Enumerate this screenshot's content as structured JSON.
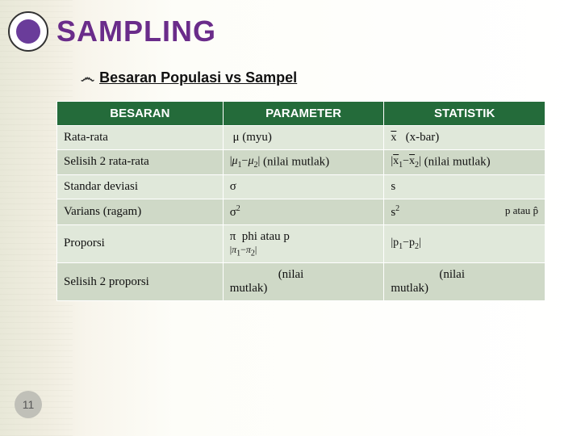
{
  "title": "SAMPLING",
  "subtitle": "Besaran Populasi vs Sampel",
  "pageNumber": "11",
  "table": {
    "headers": [
      "BESARAN",
      "PARAMETER",
      "STATISTIK"
    ],
    "rows": [
      {
        "besaran": "Rata-rata",
        "parameter": "μ (myu)",
        "statistik_prefix": "x̄",
        "statistik_suffix": "   (x-bar)"
      },
      {
        "besaran": "Selisih 2 rata-rata",
        "param_math": "|μ₁−μ₂|",
        "param_label": "        (nilai mutlak)",
        "stat_math": "|x̄₁−x̄₂|",
        "stat_label": "        (nilai mutlak)"
      },
      {
        "besaran": "Standar deviasi",
        "parameter": "σ",
        "statistik": "s"
      },
      {
        "besaran": "Varians (ragam)",
        "parameter": "σ²",
        "statistik_html": "s²",
        "statistik_extra": "atau p̂"
      },
      {
        "besaran": "Proporsi",
        "parameter": "π  phi atau p",
        "param_math_below": "|π₁−π₂|",
        "stat_math": "|p₁−p₂|"
      },
      {
        "besaran": "Selisih 2 proporsi",
        "param_label": "        (nilai mutlak)",
        "stat_label": "        (nilai mutlak)"
      }
    ]
  }
}
